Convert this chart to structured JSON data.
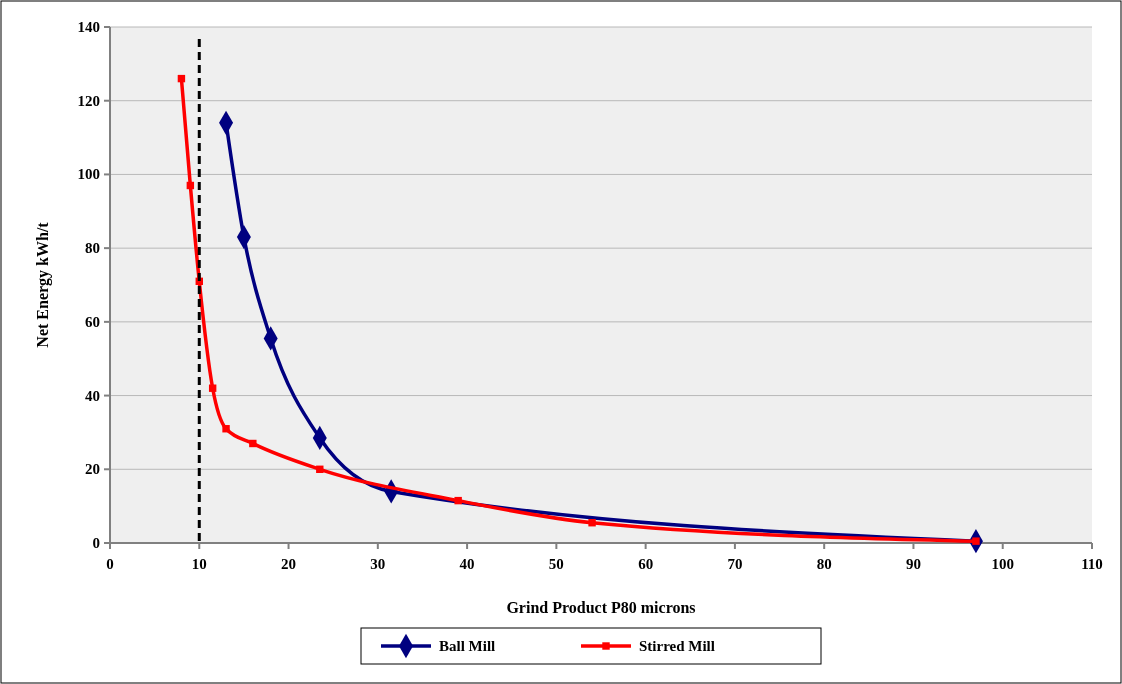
{
  "chart_data": {
    "type": "line",
    "xlabel": "Grind Product P80 microns",
    "ylabel": "Net Energy kWh/t",
    "xlim": [
      0,
      110
    ],
    "xticks": [
      0,
      10,
      20,
      30,
      40,
      50,
      60,
      70,
      80,
      90,
      100,
      110
    ],
    "ylim": [
      0,
      140
    ],
    "yticks": [
      0,
      20,
      40,
      60,
      80,
      100,
      120,
      140
    ],
    "grid": "y",
    "legend": "bottom",
    "series": [
      {
        "name": "Ball Mill",
        "color": "#000080",
        "marker": "diamond",
        "x": [
          13,
          15,
          18,
          23.5,
          31.5,
          97
        ],
        "values": [
          114,
          83,
          55.5,
          28.5,
          14,
          0.5
        ]
      },
      {
        "name": "Stirred Mill",
        "color": "#ff0000",
        "marker": "square",
        "x": [
          8,
          9,
          10,
          11.5,
          13,
          16,
          23.5,
          39,
          54,
          97
        ],
        "values": [
          126,
          97,
          71,
          42,
          31,
          27,
          20,
          11.5,
          5.5,
          0.5
        ]
      }
    ],
    "ref_lines": [
      {
        "axis": "x",
        "value": 10,
        "color": "#000000",
        "line_style": "dashed"
      }
    ]
  }
}
